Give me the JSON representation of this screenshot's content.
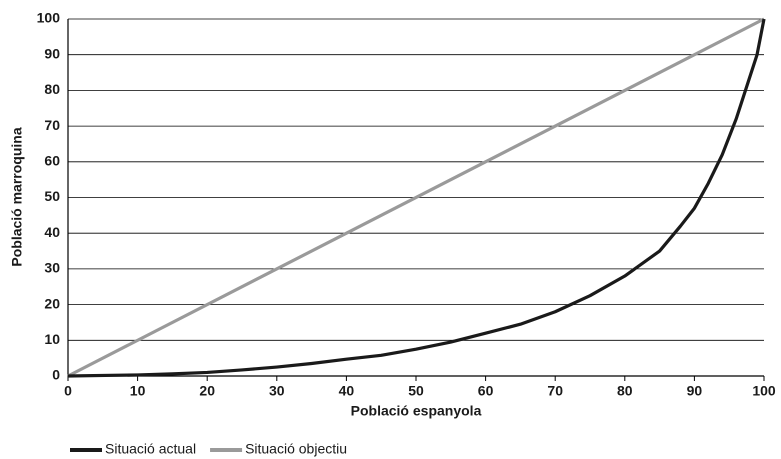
{
  "chart_data": {
    "type": "line",
    "xlabel": "Població espanyola",
    "ylabel": "Població marroquina",
    "xlim": [
      0,
      100
    ],
    "xticks": [
      0,
      10,
      20,
      30,
      40,
      50,
      60,
      70,
      80,
      90,
      100
    ],
    "ylim": [
      0,
      100
    ],
    "yticks": [
      0,
      10,
      20,
      30,
      40,
      50,
      60,
      70,
      80,
      90,
      100
    ],
    "grid": true,
    "legend": "bottom-left",
    "series": [
      {
        "name": "Situació actual",
        "color": "#1a1a1a",
        "x": [
          0,
          10,
          15,
          20,
          25,
          30,
          35,
          40,
          45,
          50,
          55,
          60,
          65,
          70,
          75,
          80,
          85,
          88,
          90,
          92,
          94,
          96,
          98,
          99,
          100
        ],
        "values": [
          0,
          0.3,
          0.6,
          1,
          1.7,
          2.5,
          3.5,
          4.7,
          5.8,
          7.5,
          9.5,
          12,
          14.5,
          18,
          22.5,
          28,
          35,
          42,
          47,
          54,
          62,
          72,
          84,
          90,
          100
        ]
      },
      {
        "name": "Situació objectiu",
        "color": "#9a9a9a",
        "x": [
          0,
          100
        ],
        "values": [
          0,
          100
        ]
      }
    ]
  }
}
